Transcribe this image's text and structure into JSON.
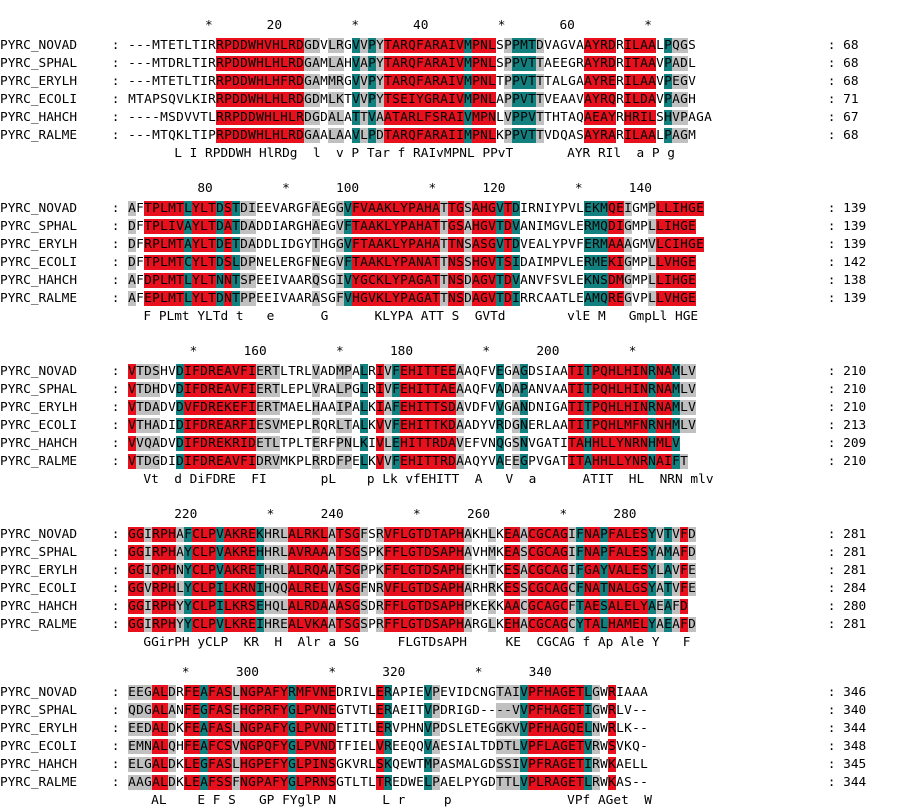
{
  "alignment": {
    "separator": " : ",
    "colors": {
      "identical": "#e8101c",
      "similar": "#138080",
      "weak": "#c0c0c0",
      "none": "#ffffff"
    },
    "legend_codes": "r = identical (red), t = similar (teal), g = weak (grey), . = no shading",
    "blocks": [
      {
        "ruler": "          *       20         *       40         *       60         *",
        "rows": [
          {
            "name": "PYRC_NOVAD",
            "seq": "---MTETLTIRRPDDWHVHLRDGDVLRGVVPYTARQFARAIVMPNLSPPMTDVAGVAAYRDRILAALPQGS",
            "end": "68",
            "shade": "...........rrrrrrrrrrrgg.gg.tgtgrrrrrrrrrrtrrr.gtttg.....rrrr.rrrr.tgg"
          },
          {
            "name": "PYRC_SPHAL",
            "seq": "---MTDRLTIRRPDDWHLHLRDGAMLAHVAPYTARQFARAIVMPNLSPPVTTAEEGRAYRDRITAAVPADL",
            "end": "68",
            "shade": "...........rrrrrrrrrrrgg.gg.tgtgrrrrrrrrrrtrrr.gtttg.....rrrr.rrrr.tgg"
          },
          {
            "name": "PYRC_ERYLH",
            "seq": "---MTETLTIRRPDDWHLHFRDGAMMRGVVPYTARQFARAIVMPNLTPPVTTTALGAAYRERILAAVPEGV",
            "end": "68",
            "shade": "...........rrrrrrrrrrrgg.gg.tgtgrrrrrrrrrrtrrr.gtttg.....rrrr.rrrr.tgg"
          },
          {
            "name": "PYRC_ECOLI",
            "seq": "MTAPSQVLKIRRPDDWHLHLRDGDMLKTVVPYTSEIYGRAIVMPNLAPPVTTVEAAVAYRQRILDAVPAGH",
            "end": "71",
            "shade": "...........rrrrrrrrrrrgg.gg.tgtgrrrrrrrrrrtrrr.gtttg.....rrrr.rrrr.tgg"
          },
          {
            "name": "PYRC_HAHCH",
            "seq": "----MSDVVTLRRPDDWHLHLRDGDALATTVAATARLFSRAIVMPNLVPPVTTHTAQAEAYRHRILSHVPAGA",
            "end": "67",
            "shade": "...........rrrrrrrrrrrgg.gg.tgtgrrrrrrrrrrtrrr.gtttg.....rrrr.rrrr.tgg"
          },
          {
            "name": "PYRC_RALME",
            "seq": "---MTQKLTIPRPDDWHLHLRDGAALAAVLPDTARQFARAIIMPNLKPPVTTVDQASAYRARILAALPAGM",
            "end": "68",
            "shade": "...........rrrrrrrrrrrgg.gg.tgtgrrrrrrrrrrtrrr.gtttg.....rrrr.rrrr.tgg"
          }
        ],
        "consensus": "      L I RPDDWH HlRDg  l  v P Tar f RAIvMPNL PPvT       AYR RIl  a P g"
      },
      {
        "ruler": "         80         *      100         *      120         *      140",
        "rows": [
          {
            "name": "PYRC_NOVAD",
            "seq": "AFTPLMTLYLTDSTDIEEVARGFAEGGVFVAAKLYPAHATTGSAHGVTDIRNIYPVLEKMQEIGMPLLIHGE",
            "end": "139",
            "shade": "g.rrrrrtrrrtrtgg.......g..gtrrrrrrrrrrrgrrgrrrtrt........tttrrg..grrrrrr"
          },
          {
            "name": "PYRC_SPHAL",
            "seq": "DFTPLIVAYLTDATDADDIARGHAEGVFTAAKLYPAHATTGSAHGVTDVANIMGVLERMQDIGMPLLIHGE",
            "end": "139",
            "shade": "g.rrrrrtrrrtrtgg.......g..gtrrrrrrrrrrrgrrgrrrtrt........tttrrg..grrrrrr"
          },
          {
            "name": "PYRC_ERYLH",
            "seq": "DFRPLMTAYLTDETDADDLIDGYTHGGVFTAAKLYPAHATTNSASGVTDVEALYPVFERMAAAGMVLCIHGE",
            "end": "139",
            "shade": "g.rrrrrtrrrtrtgg.......g..gtrrrrrrrrrrrgrrgrrrtrt........tttrrg..grrrrrr"
          },
          {
            "name": "PYRC_ECOLI",
            "seq": "DFTPLMTCYLTDSLDPNELERGFNEGVFTAAKLYPANATTNSSHGVTSIDAIMPVLERMEKIGMPLLVHGE",
            "end": "142",
            "shade": "g.rrrrrtrrrtrtgg.......g..gtrrrrrrrrrrrgrrgrrrtrt........tttrrg..grrrrrr"
          },
          {
            "name": "PYRC_HAHCH",
            "seq": "AFDPLMTLYLTNNTSPEEIVAARQSGIVYGCKLYPAGATTNSDAGVTDVANVFSVLEKNSDMGMPLLIHGE",
            "end": "138",
            "shade": "g.rrrrrtrrrtrtgg.......g..gtrrrrrrrrrrrgrrgrrrtrt........tttrrg..grrrrrr"
          },
          {
            "name": "PYRC_RALME",
            "seq": "AFEPLMTLYLTDNTPPEEIVAARASGFVHGVKLYPAGATTNSDAGVTDIRRCAATLEAMQREGVPLLVHGE",
            "end": "139",
            "shade": "g.rrrrrtrrrtrtgg.......g..gtrrrrrrrrrrrgrrgrrrtrt........tttrrg..grrrrrr"
          }
        ],
        "consensus": "  F PLmt YLTd t   e      G      KLYPA ATT S  GVTd        vlE M   GmpLl HGE"
      },
      {
        "ruler": "        *      160         *      180         *      200         *",
        "rows": [
          {
            "name": "PYRC_NOVAD",
            "seq": "VTDSHVDIFDREAVFIERTLTRLVADMPALRIVFEHITTEEAAQFVEGAGDSIAATITPQHLHINRNAMLV",
            "end": "210",
            "shade": "rggg..trrrrrrrrrggg....g..gg.t.rgtrrrrrrrg....t.gt.....rrtrrrrrrrtrrtggg"
          },
          {
            "name": "PYRC_SPHAL",
            "seq": "VTDHDVDIFDREAVFIERTLEPLVRALPGLRIVFEHITTAEAAQFVADAPANVAATITPQHLHINRNAMLV",
            "end": "210",
            "shade": "rggg..trrrrrrrrrggg....g..gg.t.rgtrrrrrrrg....t.gt.....rrtrrrrrrrtrrtggg"
          },
          {
            "name": "PYRC_ERYLH",
            "seq": "VTDADVDVFDREKEFIERTMAELHAAIPALKIAFEHITTSDAVDFVVGANDNIGATITPQHLHINRNAMLV",
            "end": "210",
            "shade": "rggg..trrrrrrrrrggg....g..gg.t.rgtrrrrrrrg....t.gt.....rrtrrrrrrrtrrtggg"
          },
          {
            "name": "PYRC_ECOLI",
            "seq": "VTHADIDIFDREARFIESVMEPLRQRLTALKVVFEHITTKDAADYVRDGNERLAATITPQHLMFNRNHMLV",
            "end": "213",
            "shade": "rggg..trrrrrrrrrggg....g..gg.t.rgtrrrrrrrg....t.gt.....rrtrrrrrrrtrrtggg"
          },
          {
            "name": "PYRC_HAHCH",
            "seq": "VVQADVDIFDREKRIDETLTPLTERFPNLKIVLEHITTRDAVEFVNQGSNVGATITAHHLLYNRNHMLV",
            "end": "209",
            "shade": "rggg..trrrrrrrrrggg....g..gg.t.rgtrrrrrrrg....t.gt.....rrtrrrrrrrtrrtggg"
          },
          {
            "name": "PYRC_RALME",
            "seq": "VTDGDIDIFDREAVFIDRVMKPLRRDFPELKVVFEHITTRDAAQYVAEEGPVGATITAHHLLYNRNAIFT",
            "end": "210",
            "shade": "rggg..trrrrrrrrrggg....g..gg.t.rgtrrrrrrrg....t.gt.....rrtrrrrrrrtrrtggg"
          }
        ],
        "consensus": "  Vt  d DiFDRE  FI       pL    p Lk vfEHITT  A   V  a      ATIT  HL  NRN mlv"
      },
      {
        "ruler": "      220         *      240         *      260         *      280",
        "rows": [
          {
            "name": "PYRC_NOVAD",
            "seq": "GGIRPHAFCLPVAKREKHRLALRKLATSGFSRVFLGTDTAPHAKHLKEAACGCAGIFNAPFALESYVTVFD",
            "end": "281",
            "shade": "rrgrrrgtrrrtrrrrtgggrrrrrgrrrg.grrrrrrrrrrg..g.rrgrrrrrgtrrtrrrrrtgtgrg"
          },
          {
            "name": "PYRC_SPHAL",
            "seq": "GGIRPHAYCLPVAKREHHRLAVRAAATSGSPKFFLGTDSAPHAVHMKEASCGCAGIFNAPFALESYAMAFD",
            "end": "281",
            "shade": "rrgrrrgtrrrtrrrrtgggrrrrrgrrrg.grrrrrrrrrrg..g.rrgrrrrrgtrrtrrrrrtgtgrg"
          },
          {
            "name": "PYRC_ERYLH",
            "seq": "GGIQPHNYCLPVAKRETHRLALRQAATSGPPKFFLGTDSAPHEKHTKESACGCAGIFGAYVALESYLAVFE",
            "end": "281",
            "shade": "rrgrrrgtrrrtrrrrtgggrrrrrgrrrg.grrrrrrrrrrg..g.rrgrrrrrgtrrtrrrrrtgtgrg"
          },
          {
            "name": "PYRC_ECOLI",
            "seq": "GGVRPHLYCLPILKRNIHQQALRELVASGFNRVFLGTDSAPHARHRKESSCGCAGCFNATNALGSYATVFE",
            "end": "284",
            "shade": "rrgrrrgtrrrtrrrrtgggrrrrrgrrrg.grrrrrrrrrrg..g.rrgrrrrrgtrrtrrrrrtgtgrg"
          },
          {
            "name": "PYRC_HAHCH",
            "seq": "GGIRPHYYCLPILKRSEHQLALRDAAASGSDRFFLGTDSAPHPKEKKAACGCAGCFTAESALELYAEAFD",
            "end": "280",
            "shade": "rrgrrrgtrrrtrrrrtgggrrrrrgrrrg.grrrrrrrrrrg..g.rrgrrrrrgtrrtrrrrrtgtgrg"
          },
          {
            "name": "PYRC_RALME",
            "seq": "GGIRPHYYCLPVLKREIHREALVKAATSGSPRFFLGTDSAPHARGLKEHACGCAGCYTALHAMELYAEAFD",
            "end": "281",
            "shade": "rrgrrrgtrrrtrrrrtgggrrrrrgrrrg.grrrrrrrrrrg..g.rrgrrrrrgtrrtrrrrrtgtgrg"
          }
        ],
        "consensus": "  GGirPH yCLP  KR  H  Alr a SG     FLGTDsAPH     KE  CGCAG f Ap Ale Y   F"
      },
      {
        "ruler": "       *      300         *      320         *      340",
        "rows": [
          {
            "name": "PYRC_NOVAD",
            "seq": "EEGALDRFEAFASLNGPAFYRMFVNEDRIVLERAPIEVPEVIDCNGTAIVPFHAGETLGWRIAAA",
            "end": "346",
            "shade": "gggrrg.rrtrrrgrrrrrrtrrrrr.....rt....tg.......gggtrrrrrrrtg.r...."
          },
          {
            "name": "PYRC_SPHAL",
            "seq": "QDGALANFEGFASEHGPRFYGLPVNEGTVTLERAEITVPDRIGD----VVPFHAGETIGWRLV--",
            "end": "340",
            "shade": "gggrrg.rrtrrrgrrrrrrtrrrrr.....rt....tg.......gggtrrrrrrrtg.r...."
          },
          {
            "name": "PYRC_ERYLH",
            "seq": "EEDALDKFEAFASLNGPAFYGLPVNDETITLERVPHNVPDSLETEGGKVVPFHAGQELNWRLK--",
            "end": "344",
            "shade": "gggrrg.rrtrrrgrrrrrrtrrrrr.....rt....tg.......gggtrrrrrrrtg.r...."
          },
          {
            "name": "PYRC_ECOLI",
            "seq": "EMNALQHFEAFCSVNGPQFYGLPVNDTFIELVREEQQVAESIALTDDTLVPFLAGETVRWSVKQ-",
            "end": "348",
            "shade": "gggrrg.rrtrrrgrrrrrrtrrrrr.....rt....tg.......gggtrrrrrrrtg.r...."
          },
          {
            "name": "PYRC_HAHCH",
            "seq": "ELGALDKLEGFASLHGPEFYGLPINSGKVRLSKQEWTMPASMALGDSSIVPFRAGETIRWKAELL",
            "end": "345",
            "shade": "gggrrg.rrtrrrgrrrrrrtrrrrr.....rt....tg.......gggtrrrrrrrtg.r...."
          },
          {
            "name": "PYRC_RALME",
            "seq": "AAGALDKLEAFSSFNGPAFYGLPRNSGTLTLTREDWELPAELPYGDTTLVPLRAGETLRWKAS--",
            "end": "344",
            "shade": "gggrrg.rrtrrrgrrrrrrtrrrrr.....rt....tg.......gggtrrrrrrrtg.r...."
          }
        ],
        "consensus": "   AL    E F S   GP FYglP N      L r     p               VPf AGet  W"
      }
    ]
  }
}
